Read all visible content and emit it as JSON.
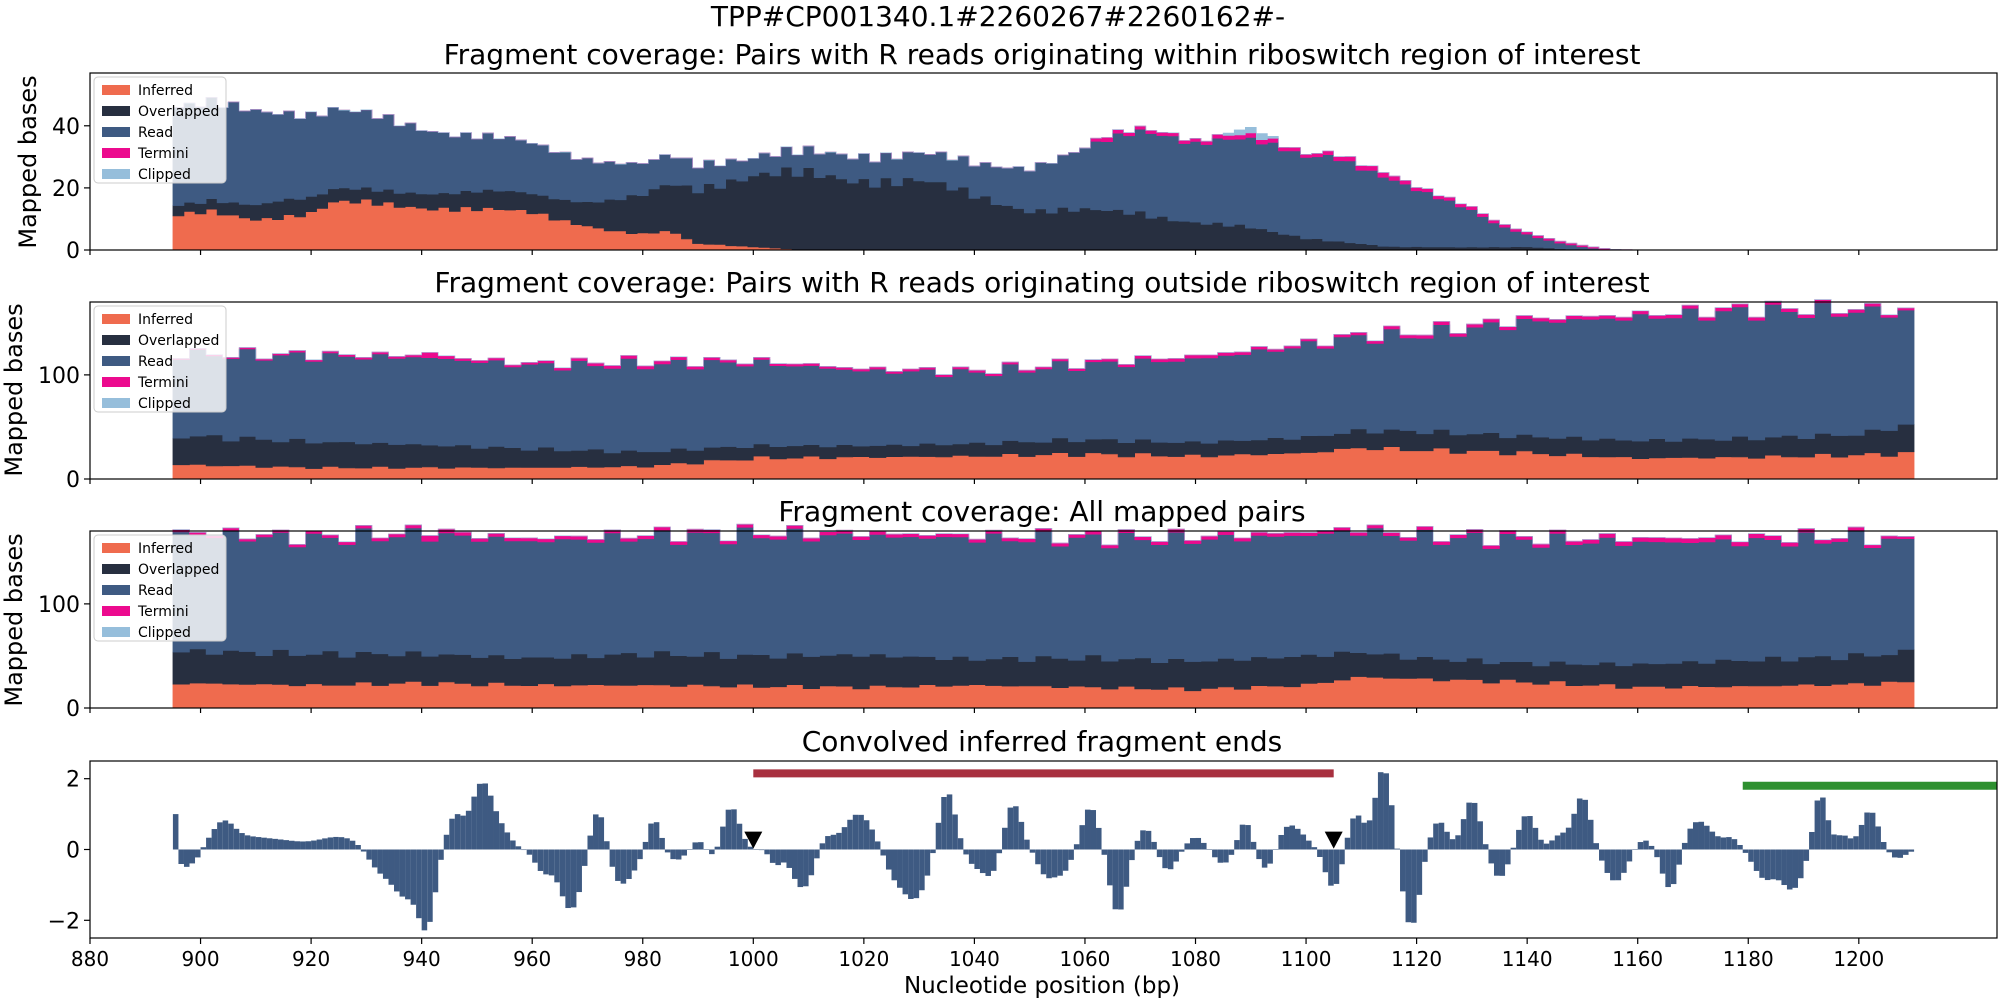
{
  "figure": {
    "suptitle": "TPP#CP001340.1#2260267#2260162#-",
    "xlabel": "Nucleotide position (bp)"
  },
  "colors": {
    "inferred": "#ef6b4e",
    "overlapped": "#272f40",
    "read": "#3e5a82",
    "termini": "#ec0a8e",
    "clipped": "#96bedb",
    "signal": "#3e5a82",
    "red_bar": "#a8303f",
    "green_bar": "#2e9030",
    "marker": "#000000"
  },
  "chart_data": [
    {
      "type": "area",
      "stacked": true,
      "title": "Fragment coverage: Pairs with R reads originating within riboswitch region of interest",
      "ylabel": "Mapped bases",
      "xlim": [
        880,
        1225
      ],
      "ylim": [
        0,
        57
      ],
      "yticks": [
        0,
        20,
        40
      ],
      "legend": [
        "Inferred",
        "Overlapped",
        "Read",
        "Termini",
        "Clipped"
      ],
      "legend_position": "top-left",
      "x_start": 895,
      "x_end": 1210,
      "series": {
        "inferred": {
          "x": [
            895,
            902,
            905,
            910,
            915,
            920,
            924,
            930,
            940,
            960,
            970,
            975,
            980,
            985,
            990,
            992,
            1000,
            1010,
            1210
          ],
          "y": [
            11,
            12,
            11,
            10,
            11,
            12,
            15,
            15,
            14,
            12,
            8,
            6,
            5,
            6,
            2,
            2,
            1,
            0,
            0
          ]
        },
        "overlapped": {
          "x": [
            895,
            900,
            905,
            910,
            915,
            920,
            924,
            930,
            940,
            960,
            970,
            980,
            985,
            990,
            995,
            1000,
            1010,
            1020,
            1030,
            1050,
            1070,
            1080,
            1090,
            1100,
            1110,
            1115,
            1120,
            1140,
            1150,
            1210
          ],
          "y": [
            3,
            3,
            4,
            5,
            6,
            5,
            4,
            4,
            5,
            6,
            8,
            12,
            15,
            18,
            21,
            23,
            24,
            23,
            22,
            13,
            12,
            9,
            7,
            4,
            2,
            1,
            1,
            1,
            0,
            0
          ]
        },
        "read": {
          "x": [
            895,
            910,
            920,
            930,
            940,
            950,
            960,
            970,
            980,
            990,
            1000,
            1040,
            1050,
            1055,
            1060,
            1065,
            1070,
            1075,
            1080,
            1085,
            1090,
            1095,
            1100,
            1105,
            1110,
            1115,
            1120,
            1125,
            1130,
            1135,
            1140,
            1145,
            1150,
            1155,
            1160,
            1210
          ],
          "y": [
            32,
            30,
            27,
            24,
            21,
            18,
            16,
            14,
            10,
            8,
            6,
            10,
            14,
            17,
            20,
            23,
            26,
            27,
            26,
            28,
            28,
            27,
            26,
            28,
            25,
            22,
            18,
            15,
            12,
            7,
            4,
            2,
            1,
            0,
            0,
            0
          ]
        },
        "termini": {
          "x": [
            895,
            1060,
            1063,
            1067,
            1070,
            1080,
            1090,
            1100,
            1110,
            1115,
            1120,
            1130,
            1150,
            1160,
            1210
          ],
          "y": [
            0,
            0,
            1.5,
            1,
            1,
            1,
            1.5,
            1,
            1.5,
            1.5,
            1,
            1,
            0.5,
            0,
            0
          ]
        },
        "clipped": {
          "x": [
            895,
            1085,
            1087,
            1092,
            1095,
            1210
          ],
          "y": [
            0,
            0,
            1.5,
            2,
            0,
            0
          ]
        }
      }
    },
    {
      "type": "area",
      "stacked": true,
      "title": "Fragment coverage: Pairs with R reads originating outside riboswitch region of interest",
      "ylabel": "Mapped bases",
      "xlim": [
        880,
        1225
      ],
      "ylim": [
        0,
        170
      ],
      "yticks": [
        0,
        100
      ],
      "legend": [
        "Inferred",
        "Overlapped",
        "Read",
        "Termini",
        "Clipped"
      ],
      "legend_position": "top-left",
      "x_start": 895,
      "x_end": 1210,
      "series": {
        "inferred": {
          "x": [
            895,
            920,
            960,
            980,
            1000,
            1020,
            1040,
            1060,
            1080,
            1100,
            1110,
            1120,
            1140,
            1160,
            1180,
            1200,
            1210
          ],
          "y": [
            14,
            11,
            11,
            12,
            20,
            21,
            22,
            24,
            22,
            25,
            30,
            28,
            25,
            20,
            21,
            23,
            25
          ]
        },
        "overlapped": {
          "x": [
            895,
            920,
            940,
            960,
            980,
            1000,
            1020,
            1040,
            1060,
            1080,
            1100,
            1120,
            1140,
            1160,
            1180,
            1200,
            1210
          ],
          "y": [
            28,
            25,
            22,
            18,
            14,
            12,
            11,
            12,
            14,
            13,
            15,
            18,
            16,
            17,
            18,
            20,
            28
          ]
        },
        "read": {
          "x": [
            895,
            920,
            940,
            960,
            980,
            1000,
            1020,
            1040,
            1060,
            1080,
            1100,
            1120,
            1140,
            1160,
            1180,
            1200,
            1210
          ],
          "y": [
            78,
            82,
            84,
            80,
            84,
            80,
            72,
            68,
            72,
            80,
            88,
            92,
            110,
            118,
            122,
            118,
            107
          ]
        },
        "termini": {
          "x": [
            895,
            941,
            942,
            943,
            945,
            960,
            980,
            1000,
            1020,
            1040,
            1060,
            1080,
            1100,
            1120,
            1140,
            1160,
            1180,
            1200,
            1210
          ],
          "y": [
            1,
            2,
            8,
            5,
            2,
            2,
            3,
            2,
            2,
            2,
            2,
            3,
            2,
            3,
            3,
            3,
            3,
            3,
            2
          ]
        },
        "clipped": {
          "x": [
            895,
            1210
          ],
          "y": [
            0,
            0
          ]
        }
      }
    },
    {
      "type": "area",
      "stacked": true,
      "title": "Fragment coverage: All mapped pairs",
      "ylabel": "Mapped bases",
      "xlim": [
        880,
        1225
      ],
      "ylim": [
        0,
        170
      ],
      "yticks": [
        0,
        100
      ],
      "legend": [
        "Inferred",
        "Overlapped",
        "Read",
        "Termini",
        "Clipped"
      ],
      "legend_position": "top-left",
      "x_start": 895,
      "x_end": 1210,
      "series": {
        "inferred": {
          "x": [
            895,
            920,
            940,
            960,
            980,
            1000,
            1020,
            1040,
            1060,
            1080,
            1100,
            1110,
            1120,
            1140,
            1160,
            1180,
            1200,
            1210
          ],
          "y": [
            24,
            22,
            24,
            22,
            22,
            21,
            20,
            22,
            20,
            18,
            22,
            30,
            28,
            25,
            20,
            21,
            23,
            25
          ]
        },
        "overlapped": {
          "x": [
            895,
            920,
            940,
            960,
            980,
            1000,
            1020,
            1040,
            1060,
            1080,
            1100,
            1120,
            1140,
            1160,
            1180,
            1200,
            1210
          ],
          "y": [
            31,
            30,
            28,
            26,
            30,
            29,
            31,
            25,
            28,
            27,
            28,
            20,
            18,
            22,
            25,
            27,
            29
          ]
        },
        "read": {
          "x": [
            895,
            920,
            940,
            960,
            980,
            1000,
            1020,
            1040,
            1060,
            1080,
            1100,
            1120,
            1140,
            1160,
            1180,
            1200,
            1210
          ],
          "y": [
            113,
            110,
            115,
            112,
            112,
            116,
            114,
            116,
            114,
            117,
            116,
            116,
            118,
            117,
            114,
            113,
            104
          ]
        },
        "termini": {
          "x": [
            895,
            941,
            942,
            943,
            945,
            960,
            980,
            1000,
            1020,
            1040,
            1060,
            1080,
            1100,
            1120,
            1140,
            1160,
            1180,
            1200,
            1210
          ],
          "y": [
            2,
            3,
            8,
            6,
            3,
            3,
            3,
            3,
            3,
            3,
            3,
            3,
            3,
            3,
            3,
            4,
            4,
            3,
            2
          ]
        },
        "clipped": {
          "x": [
            895,
            1210
          ],
          "y": [
            0,
            0
          ]
        }
      }
    },
    {
      "type": "bar",
      "title": "Convolved inferred fragment ends",
      "xlabel": "Nucleotide position (bp)",
      "xlim": [
        880,
        1225
      ],
      "ylim": [
        -2.5,
        2.5
      ],
      "yticks": [
        -2,
        0,
        2
      ],
      "xticks": [
        880,
        900,
        920,
        940,
        960,
        980,
        1000,
        1020,
        1040,
        1060,
        1080,
        1100,
        1120,
        1140,
        1160,
        1180,
        1200
      ],
      "x_start": 895,
      "x_end": 1210,
      "first_value": 1.0,
      "peaks": [
        {
          "x": 897,
          "h": -0.45,
          "w": 1
        },
        {
          "x": 899,
          "h": -0.3,
          "w": 1
        },
        {
          "x": 904,
          "h": 0.7,
          "w": 2
        },
        {
          "x": 908,
          "h": 0.25,
          "w": 3
        },
        {
          "x": 914,
          "h": 0.25,
          "w": 4
        },
        {
          "x": 925,
          "h": 0.35,
          "w": 4
        },
        {
          "x": 932,
          "h": -0.5,
          "w": 2
        },
        {
          "x": 937,
          "h": -1.3,
          "w": 2.5
        },
        {
          "x": 941,
          "h": -1.9,
          "w": 1.5
        },
        {
          "x": 946,
          "h": 0.9,
          "w": 1.5
        },
        {
          "x": 951,
          "h": 1.9,
          "w": 2
        },
        {
          "x": 955,
          "h": 0.35,
          "w": 1.5
        },
        {
          "x": 962,
          "h": -0.6,
          "w": 1.5
        },
        {
          "x": 967,
          "h": -1.7,
          "w": 2
        },
        {
          "x": 972,
          "h": 1.4,
          "w": 1.5
        },
        {
          "x": 976,
          "h": -1.0,
          "w": 2.5
        },
        {
          "x": 982,
          "h": 0.9,
          "w": 1.2
        },
        {
          "x": 986,
          "h": -0.3,
          "w": 1.5
        },
        {
          "x": 990,
          "h": 0.25,
          "w": 1
        },
        {
          "x": 993,
          "h": -0.25,
          "w": 1
        },
        {
          "x": 996,
          "h": 1.2,
          "w": 1.5
        },
        {
          "x": 1004,
          "h": -0.4,
          "w": 1
        },
        {
          "x": 1009,
          "h": -1.1,
          "w": 2
        },
        {
          "x": 1013,
          "h": 0.4,
          "w": 1.5
        },
        {
          "x": 1019,
          "h": 1.0,
          "w": 2.5
        },
        {
          "x": 1025,
          "h": -0.4,
          "w": 1.5
        },
        {
          "x": 1029,
          "h": -1.4,
          "w": 2.5
        },
        {
          "x": 1035,
          "h": 1.7,
          "w": 1.5
        },
        {
          "x": 1040,
          "h": -0.4,
          "w": 1.5
        },
        {
          "x": 1043,
          "h": -0.7,
          "w": 1.5
        },
        {
          "x": 1047,
          "h": 1.3,
          "w": 1.5
        },
        {
          "x": 1053,
          "h": -0.7,
          "w": 1.5
        },
        {
          "x": 1056,
          "h": -0.6,
          "w": 1.5
        },
        {
          "x": 1061,
          "h": 1.2,
          "w": 1.5
        },
        {
          "x": 1066,
          "h": -1.8,
          "w": 1.5
        },
        {
          "x": 1071,
          "h": 0.6,
          "w": 1.5
        },
        {
          "x": 1075,
          "h": -0.6,
          "w": 1.5
        },
        {
          "x": 1080,
          "h": 0.35,
          "w": 1.5
        },
        {
          "x": 1085,
          "h": -0.4,
          "w": 1.5
        },
        {
          "x": 1089,
          "h": 0.8,
          "w": 1.2
        },
        {
          "x": 1093,
          "h": -0.7,
          "w": 1.5
        },
        {
          "x": 1097,
          "h": 0.7,
          "w": 2.5
        },
        {
          "x": 1105,
          "h": -1.1,
          "w": 1.5
        },
        {
          "x": 1109,
          "h": 1.0,
          "w": 1.5
        },
        {
          "x": 1114,
          "h": 2.3,
          "w": 1.5
        },
        {
          "x": 1119,
          "h": -2.2,
          "w": 1.5
        },
        {
          "x": 1124,
          "h": 0.8,
          "w": 1.5
        },
        {
          "x": 1130,
          "h": 1.4,
          "w": 1.5
        },
        {
          "x": 1135,
          "h": -0.8,
          "w": 1.5
        },
        {
          "x": 1140,
          "h": 1.0,
          "w": 1.5
        },
        {
          "x": 1146,
          "h": 0.4,
          "w": 1.5
        },
        {
          "x": 1150,
          "h": 1.5,
          "w": 1.5
        },
        {
          "x": 1156,
          "h": -0.9,
          "w": 2
        },
        {
          "x": 1161,
          "h": 0.3,
          "w": 1.5
        },
        {
          "x": 1166,
          "h": -1.2,
          "w": 1.5
        },
        {
          "x": 1171,
          "h": 0.8,
          "w": 2.5
        },
        {
          "x": 1177,
          "h": 0.3,
          "w": 1.5
        },
        {
          "x": 1183,
          "h": -0.8,
          "w": 2
        },
        {
          "x": 1188,
          "h": -1.1,
          "w": 2
        },
        {
          "x": 1193,
          "h": 1.6,
          "w": 1.2
        },
        {
          "x": 1197,
          "h": 0.4,
          "w": 1.5
        },
        {
          "x": 1202,
          "h": 1.1,
          "w": 1.5
        },
        {
          "x": 1207,
          "h": -0.25,
          "w": 1.5
        }
      ],
      "markers": [
        {
          "x": 1000,
          "y": 0.25
        },
        {
          "x": 1105,
          "y": 0.25
        }
      ],
      "spans": [
        {
          "x0": 1000,
          "x1": 1105,
          "y": 2.15,
          "color": "red_bar"
        },
        {
          "x0": 1179,
          "x1": 1225,
          "y": 1.8,
          "color": "green_bar"
        }
      ]
    }
  ]
}
